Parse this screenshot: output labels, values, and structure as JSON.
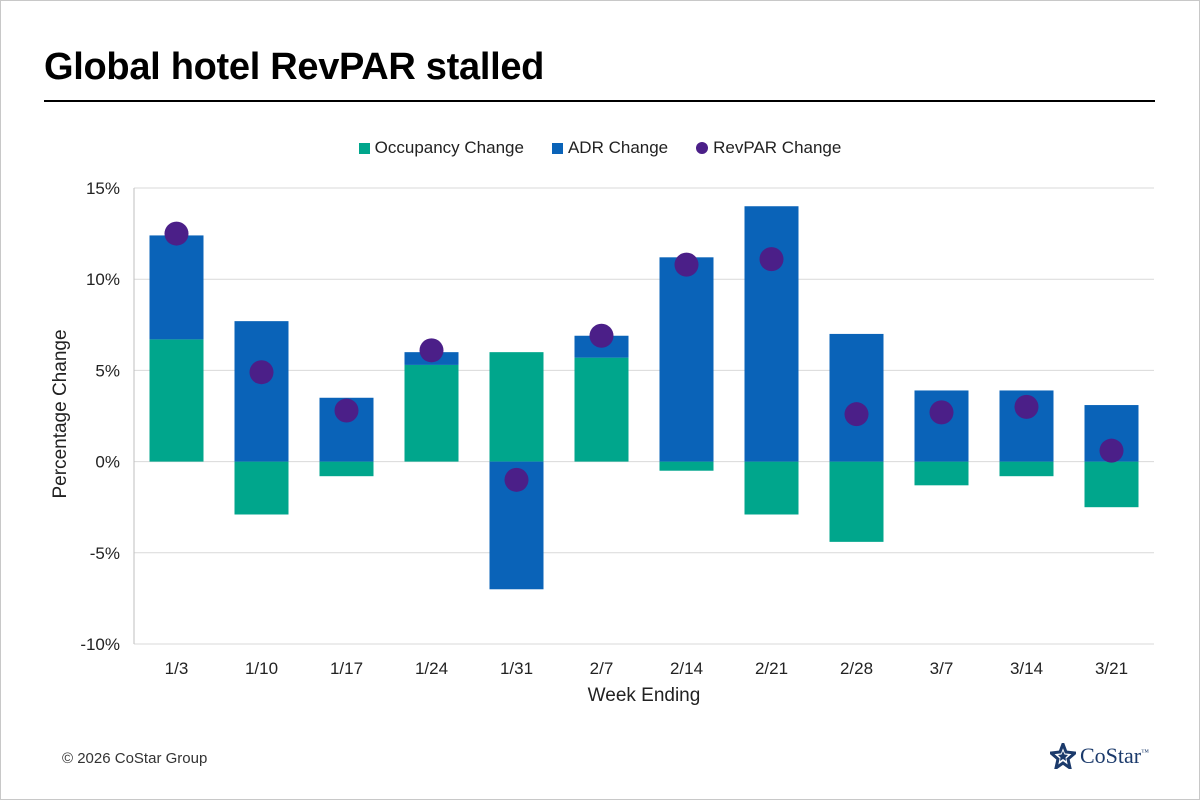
{
  "title": "Global hotel RevPAR stalled",
  "footer": "© 2026 CoStar Group",
  "logo": {
    "text": "CoStar",
    "tm": "™",
    "icon": "costar-star-icon"
  },
  "colors": {
    "occupancy": "#00a68c",
    "adr": "#0a63b8",
    "revpar": "#4b1f88",
    "grid": "#d9d9d9"
  },
  "chart_data": {
    "type": "bar",
    "stacked": true,
    "title": "",
    "xlabel": "Week Ending",
    "ylabel": "Percentage Change",
    "ylim": [
      -10,
      15
    ],
    "yticks": [
      -10,
      -5,
      0,
      5,
      10,
      15
    ],
    "ytick_labels": [
      "-10%",
      "-5%",
      "0%",
      "5%",
      "10%",
      "15%"
    ],
    "grid": true,
    "legend": "top-center",
    "categories": [
      "1/3",
      "1/10",
      "1/17",
      "1/24",
      "1/31",
      "2/7",
      "2/14",
      "2/21",
      "2/28",
      "3/7",
      "3/14",
      "3/21"
    ],
    "series": [
      {
        "name": "Occupancy Change",
        "kind": "bar",
        "values": [
          6.7,
          -2.9,
          -0.8,
          5.3,
          6.0,
          5.7,
          -0.5,
          -2.9,
          -4.4,
          -1.3,
          -0.8,
          -2.5
        ]
      },
      {
        "name": "ADR Change",
        "kind": "bar",
        "values": [
          5.7,
          7.7,
          3.5,
          0.7,
          -7.0,
          1.2,
          11.2,
          14.0,
          7.0,
          3.9,
          3.9,
          3.1
        ]
      },
      {
        "name": "RevPAR Change",
        "kind": "dot",
        "values": [
          12.5,
          4.9,
          2.8,
          6.1,
          -1.0,
          6.9,
          10.8,
          11.1,
          2.6,
          2.7,
          3.0,
          0.6
        ]
      }
    ]
  }
}
